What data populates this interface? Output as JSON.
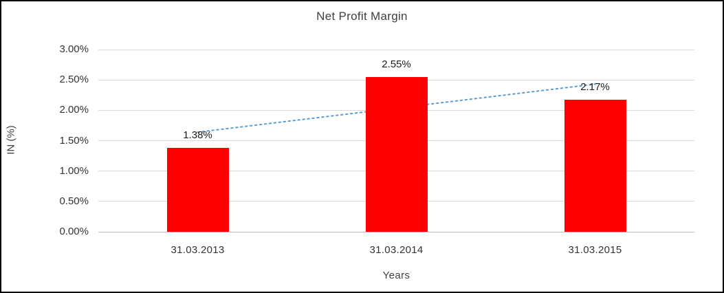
{
  "chart_data": {
    "type": "bar",
    "title": "Net Profit Margin",
    "xlabel": "Years",
    "ylabel": "IN (%)",
    "categories": [
      "31.03.2013",
      "31.03.2014",
      "31.03.2015"
    ],
    "values": [
      1.38,
      2.55,
      2.17
    ],
    "data_labels": [
      "1.38%",
      "2.55%",
      "2.17%"
    ],
    "y_ticks": [
      {
        "value": 0.0,
        "label": "0.00%"
      },
      {
        "value": 0.5,
        "label": "0.50%"
      },
      {
        "value": 1.0,
        "label": "1.00%"
      },
      {
        "value": 1.5,
        "label": "1.50%"
      },
      {
        "value": 2.0,
        "label": "2.00%"
      },
      {
        "value": 2.5,
        "label": "2.50%"
      },
      {
        "value": 3.0,
        "label": "3.00%"
      }
    ],
    "ylim": [
      0,
      3
    ],
    "grid": true,
    "legend": "none",
    "bar_color": "#ff0000",
    "trendline": {
      "type": "linear",
      "style": "dotted",
      "color": "#5b9bd5",
      "start_value": 1.64,
      "end_value": 2.43
    }
  }
}
